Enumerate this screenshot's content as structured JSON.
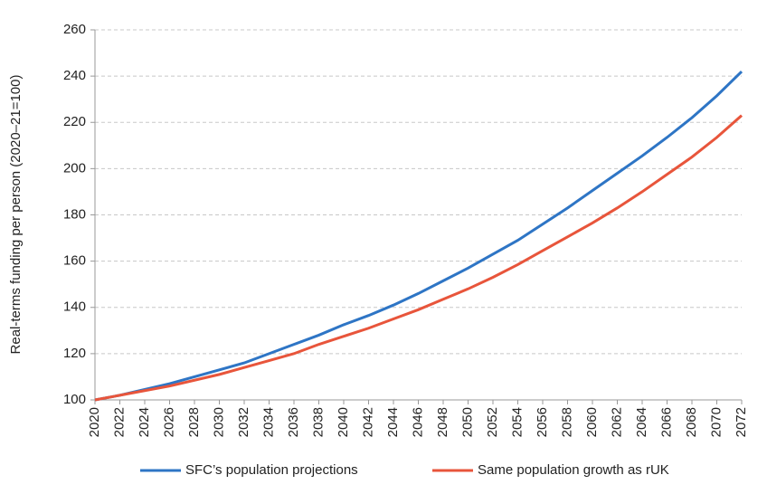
{
  "chart_data": {
    "type": "line",
    "y_label": "Real-terms funding per person (2020–21=100)",
    "x": [
      2020,
      2022,
      2024,
      2026,
      2028,
      2030,
      2032,
      2034,
      2036,
      2038,
      2040,
      2042,
      2044,
      2046,
      2048,
      2050,
      2052,
      2054,
      2056,
      2058,
      2060,
      2062,
      2064,
      2066,
      2068,
      2070,
      2072
    ],
    "series": [
      {
        "name": "SFC’s population projections",
        "color": "#2e75c5",
        "values": [
          100,
          102,
          104.5,
          107,
          110,
          113,
          116,
          120,
          124,
          128,
          132.5,
          136.5,
          141,
          146,
          151.5,
          157,
          163,
          169,
          176,
          183,
          190.5,
          198,
          205.5,
          213.5,
          222,
          231.5,
          242
        ]
      },
      {
        "name": "Same population growth as rUK",
        "color": "#e8553b",
        "values": [
          100,
          102,
          104,
          106,
          108.5,
          111,
          114,
          117,
          120,
          124,
          127.5,
          131,
          135,
          139,
          143.5,
          148,
          153,
          158.5,
          164.5,
          170.5,
          176.5,
          183,
          190,
          197.5,
          205,
          213.5,
          223
        ]
      }
    ],
    "xlim": [
      2020,
      2072
    ],
    "xticks": [
      2020,
      2022,
      2024,
      2026,
      2028,
      2030,
      2032,
      2034,
      2036,
      2038,
      2040,
      2042,
      2044,
      2046,
      2048,
      2050,
      2052,
      2054,
      2056,
      2058,
      2060,
      2062,
      2064,
      2066,
      2068,
      2070,
      2072
    ],
    "ylim": [
      100,
      260
    ],
    "yticks": [
      100,
      120,
      140,
      160,
      180,
      200,
      220,
      240,
      260
    ],
    "grid": true,
    "legend": "bottom"
  }
}
